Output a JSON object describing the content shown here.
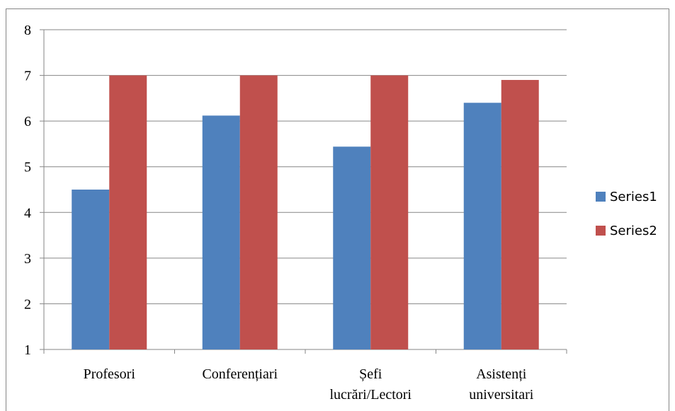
{
  "chart_data": {
    "type": "bar",
    "categories": [
      [
        "Profesori"
      ],
      [
        "Conferențiari"
      ],
      [
        "Șefi",
        "lucrări/Lectori"
      ],
      [
        "Asistenți",
        "universitari"
      ]
    ],
    "series": [
      {
        "name": "Series1",
        "color": "#4F81BD",
        "values": [
          4.5,
          6.12,
          5.44,
          6.4
        ]
      },
      {
        "name": "Series2",
        "color": "#C0504D",
        "values": [
          7.0,
          7.0,
          7.0,
          6.9
        ]
      }
    ],
    "ylim": [
      1,
      8
    ],
    "yticks": [
      1,
      2,
      3,
      4,
      5,
      6,
      7,
      8
    ],
    "grid": true,
    "legend_position": "right",
    "title": "",
    "xlabel": "",
    "ylabel": ""
  }
}
